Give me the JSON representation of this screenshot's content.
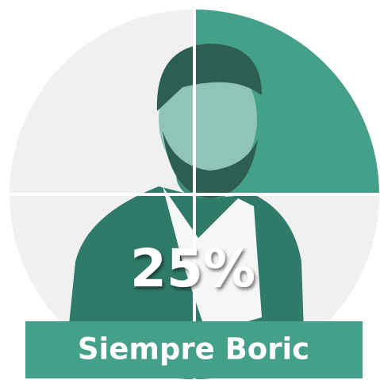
{
  "chart_data": {
    "type": "pie",
    "categories": [
      "Siempre Boric"
    ],
    "values": [
      25
    ],
    "value_labels": [
      "25%"
    ],
    "color": "#45a08a",
    "rest_color": "#f0f0f0"
  }
}
